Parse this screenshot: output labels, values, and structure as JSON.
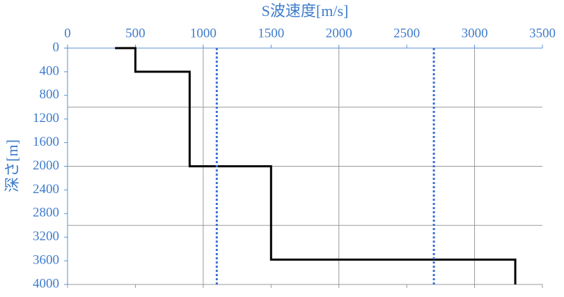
{
  "chart_data": {
    "type": "line",
    "title": "S波速度[m/s]",
    "y_label": "深さ[m]",
    "xlim": [
      0,
      3500
    ],
    "xticks": [
      0,
      500,
      1000,
      1500,
      2000,
      2500,
      3000,
      3500
    ],
    "ylim": [
      0,
      4000
    ],
    "yticks": [
      0,
      400,
      800,
      1200,
      1600,
      2000,
      2400,
      2800,
      3200,
      3600,
      4000
    ],
    "y_inverted": true,
    "x_axis_position": "top",
    "grid_x": [
      1000,
      2000,
      3000
    ],
    "grid_y": [
      1000,
      2000,
      3000
    ],
    "series": [
      {
        "x": [
          350,
          500,
          500,
          900,
          900,
          1500,
          1500,
          3300,
          3300
        ],
        "y": [
          0,
          0,
          400,
          400,
          2000,
          2000,
          3580,
          3580,
          4000
        ],
        "color": "#000000",
        "style": "solid"
      },
      {
        "x": [
          1100,
          1100
        ],
        "y": [
          0,
          4000
        ],
        "color": "#3a6fd8",
        "style": "dotted"
      },
      {
        "x": [
          2700,
          2700
        ],
        "y": [
          0,
          4000
        ],
        "color": "#3a6fd8",
        "style": "dotted"
      }
    ]
  }
}
